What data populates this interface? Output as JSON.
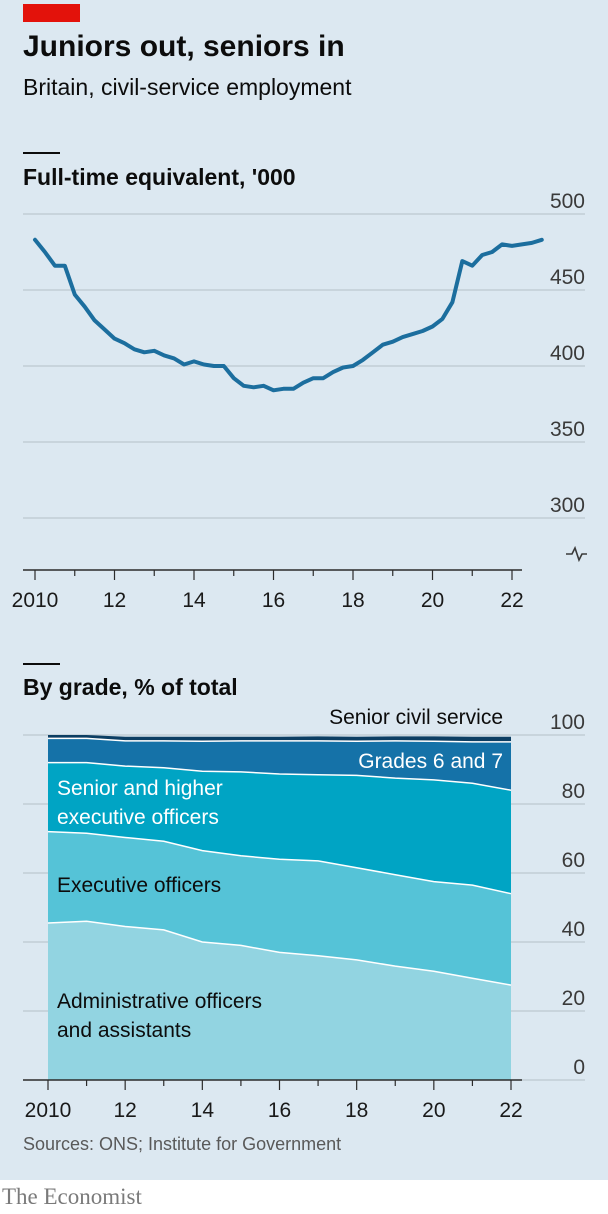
{
  "header": {
    "title": "Juniors out, seniors in",
    "subtitle": "Britain, civil-service employment"
  },
  "footer": {
    "source": "Sources: ONS; Institute for Government",
    "brand": "The Economist"
  },
  "colors": {
    "background": "#dce8f1",
    "accent_red": "#e3120b",
    "line": "#1c6e9e",
    "senior_civil_service": "#0c3e63",
    "grades_6_7": "#1572a8",
    "senior_higher_eo": "#00a4c4",
    "executive_officers": "#55c3d7",
    "admin_officers": "#92d4e1"
  },
  "chart_data": [
    {
      "type": "line",
      "title": "Full-time equivalent, '000",
      "ylim": [
        300,
        500
      ],
      "y_ticks": [
        "500",
        "450",
        "400",
        "350",
        "300"
      ],
      "x_tick_labels": [
        "2010",
        "12",
        "14",
        "16",
        "18",
        "20",
        "22"
      ],
      "x_tick_values": [
        2010,
        2012,
        2014,
        2016,
        2018,
        2020,
        2022
      ],
      "axis_break": true,
      "grid": true,
      "series": [
        {
          "x": [
            2010.0,
            2010.25,
            2010.5,
            2010.75,
            2011.0,
            2011.25,
            2011.5,
            2011.75,
            2012.0,
            2012.25,
            2012.5,
            2012.75,
            2013.0,
            2013.25,
            2013.5,
            2013.75,
            2014.0,
            2014.25,
            2014.5,
            2014.75,
            2015.0,
            2015.25,
            2015.5,
            2015.75,
            2016.0,
            2016.25,
            2016.5,
            2016.75,
            2017.0,
            2017.25,
            2017.5,
            2017.75,
            2018.0,
            2018.25,
            2018.5,
            2018.75,
            2019.0,
            2019.25,
            2019.5,
            2019.75,
            2020.0,
            2020.25,
            2020.5,
            2020.75,
            2021.0,
            2021.25,
            2021.5,
            2021.75,
            2022.0,
            2022.25,
            2022.5,
            2022.75
          ],
          "y": [
            483,
            475,
            466,
            466,
            447,
            439,
            430,
            424,
            418,
            415,
            411,
            409,
            410,
            407,
            405,
            401,
            403,
            401,
            400,
            400,
            392,
            387,
            386,
            387,
            384,
            385,
            385,
            389,
            392,
            392,
            396,
            399,
            400,
            404,
            409,
            414,
            416,
            419,
            421,
            423,
            426,
            431,
            442,
            469,
            466,
            473,
            475,
            480,
            479,
            480,
            481,
            483
          ]
        }
      ]
    },
    {
      "type": "area",
      "stacked": true,
      "title": "By grade, % of total",
      "ylim": [
        0,
        100
      ],
      "y_ticks": [
        "100",
        "80",
        "60",
        "40",
        "20",
        "0"
      ],
      "x_tick_labels": [
        "2010",
        "12",
        "14",
        "16",
        "18",
        "20",
        "22"
      ],
      "x_tick_values": [
        2010,
        2012,
        2014,
        2016,
        2018,
        2020,
        2022
      ],
      "x": [
        2010,
        2011,
        2012,
        2013,
        2014,
        2015,
        2016,
        2017,
        2018,
        2019,
        2020,
        2021,
        2022
      ],
      "series": [
        {
          "name": "Administrative officers and assistants",
          "values": [
            45.5,
            46,
            44.5,
            43.5,
            40,
            39,
            37,
            36,
            34.8,
            33,
            31.5,
            29.5,
            27.5
          ]
        },
        {
          "name": "Executive officers",
          "values": [
            26.5,
            25.5,
            25.8,
            25.7,
            26.5,
            26,
            27,
            27.5,
            26.7,
            26.5,
            26,
            27,
            26.5
          ]
        },
        {
          "name": "Senior and higher executive officers",
          "values": [
            20,
            20.5,
            20.7,
            21.3,
            23,
            24.3,
            24.7,
            25,
            26.8,
            28,
            29.5,
            29.5,
            30
          ]
        },
        {
          "name": "Grades 6 and 7",
          "values": [
            7,
            7,
            7.3,
            7.8,
            8.7,
            9,
            9.6,
            9.8,
            9.9,
            10.8,
            11.2,
            12,
            14
          ]
        },
        {
          "name": "Senior civil service",
          "values": [
            1,
            1,
            1.2,
            1.2,
            1.3,
            1.2,
            1.2,
            1.3,
            1.3,
            1.3,
            1.4,
            1.5,
            1.5
          ]
        }
      ],
      "labels": [
        {
          "lines": [
            "Senior civil service"
          ]
        },
        {
          "lines": [
            "Grades 6 and 7"
          ]
        },
        {
          "lines": [
            "Senior and higher",
            "executive officers"
          ]
        },
        {
          "lines": [
            "Executive officers"
          ]
        },
        {
          "lines": [
            "Administrative officers",
            "and assistants"
          ]
        }
      ]
    }
  ]
}
